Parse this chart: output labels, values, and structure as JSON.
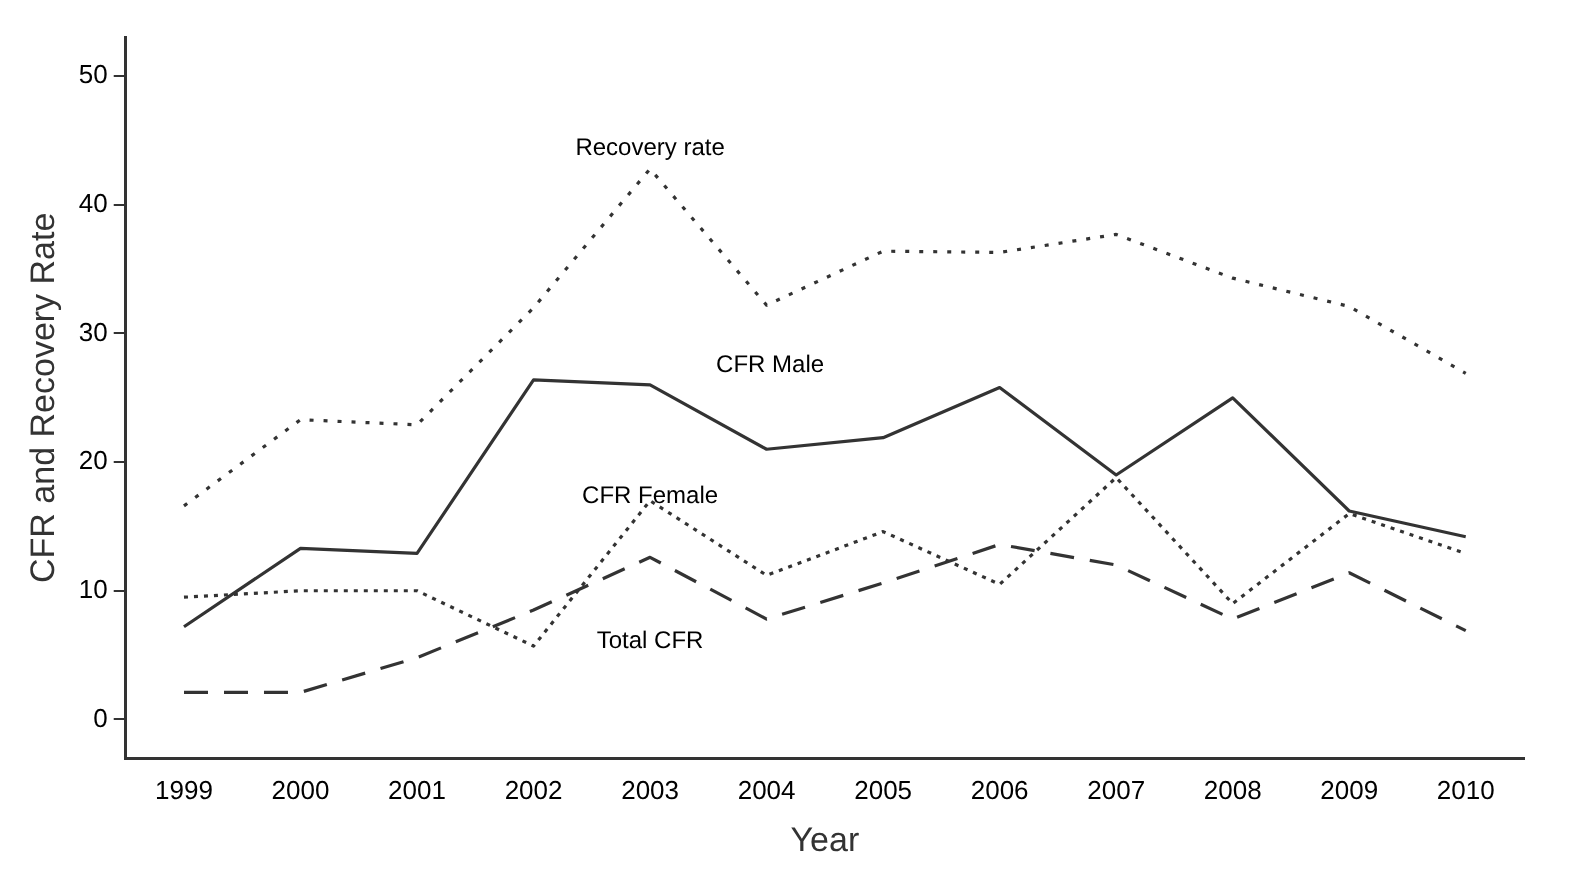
{
  "chart_data": {
    "type": "line",
    "xlabel": "Year",
    "ylabel": "CFR and Recovery Rate",
    "categories": [
      "1999",
      "2000",
      "2001",
      "2002",
      "2003",
      "2004",
      "2005",
      "2006",
      "2007",
      "2008",
      "2009",
      "2010"
    ],
    "series": [
      {
        "name": "Recovery rate",
        "color": "#333333",
        "line_style": "dotted",
        "values": [
          16.6,
          23.3,
          22.9,
          32.0,
          42.8,
          32.2,
          36.4,
          36.3,
          37.7,
          34.3,
          32.1,
          26.9
        ]
      },
      {
        "name": "CFR Male",
        "color": "#333333",
        "line_style": "solid",
        "values": [
          7.2,
          13.3,
          12.9,
          26.4,
          26.0,
          21.0,
          21.9,
          25.8,
          19.0,
          25.0,
          16.2,
          14.2
        ]
      },
      {
        "name": "CFR Female",
        "color": "#333333",
        "line_style": "dotted",
        "values": [
          9.5,
          10.0,
          10.0,
          5.7,
          17.0,
          11.2,
          14.6,
          10.5,
          18.8,
          9.0,
          16.0,
          12.9
        ]
      },
      {
        "name": "Total CFR",
        "color": "#333333",
        "line_style": "dashed",
        "values": [
          2.1,
          2.1,
          4.8,
          8.5,
          12.6,
          7.8,
          10.6,
          13.6,
          12.0,
          7.8,
          11.4,
          6.9
        ]
      }
    ],
    "ylim": [
      -3,
      53
    ],
    "yticks": [
      0,
      10,
      20,
      30,
      40,
      50
    ],
    "grid": false,
    "legend": false,
    "marker": "none"
  }
}
